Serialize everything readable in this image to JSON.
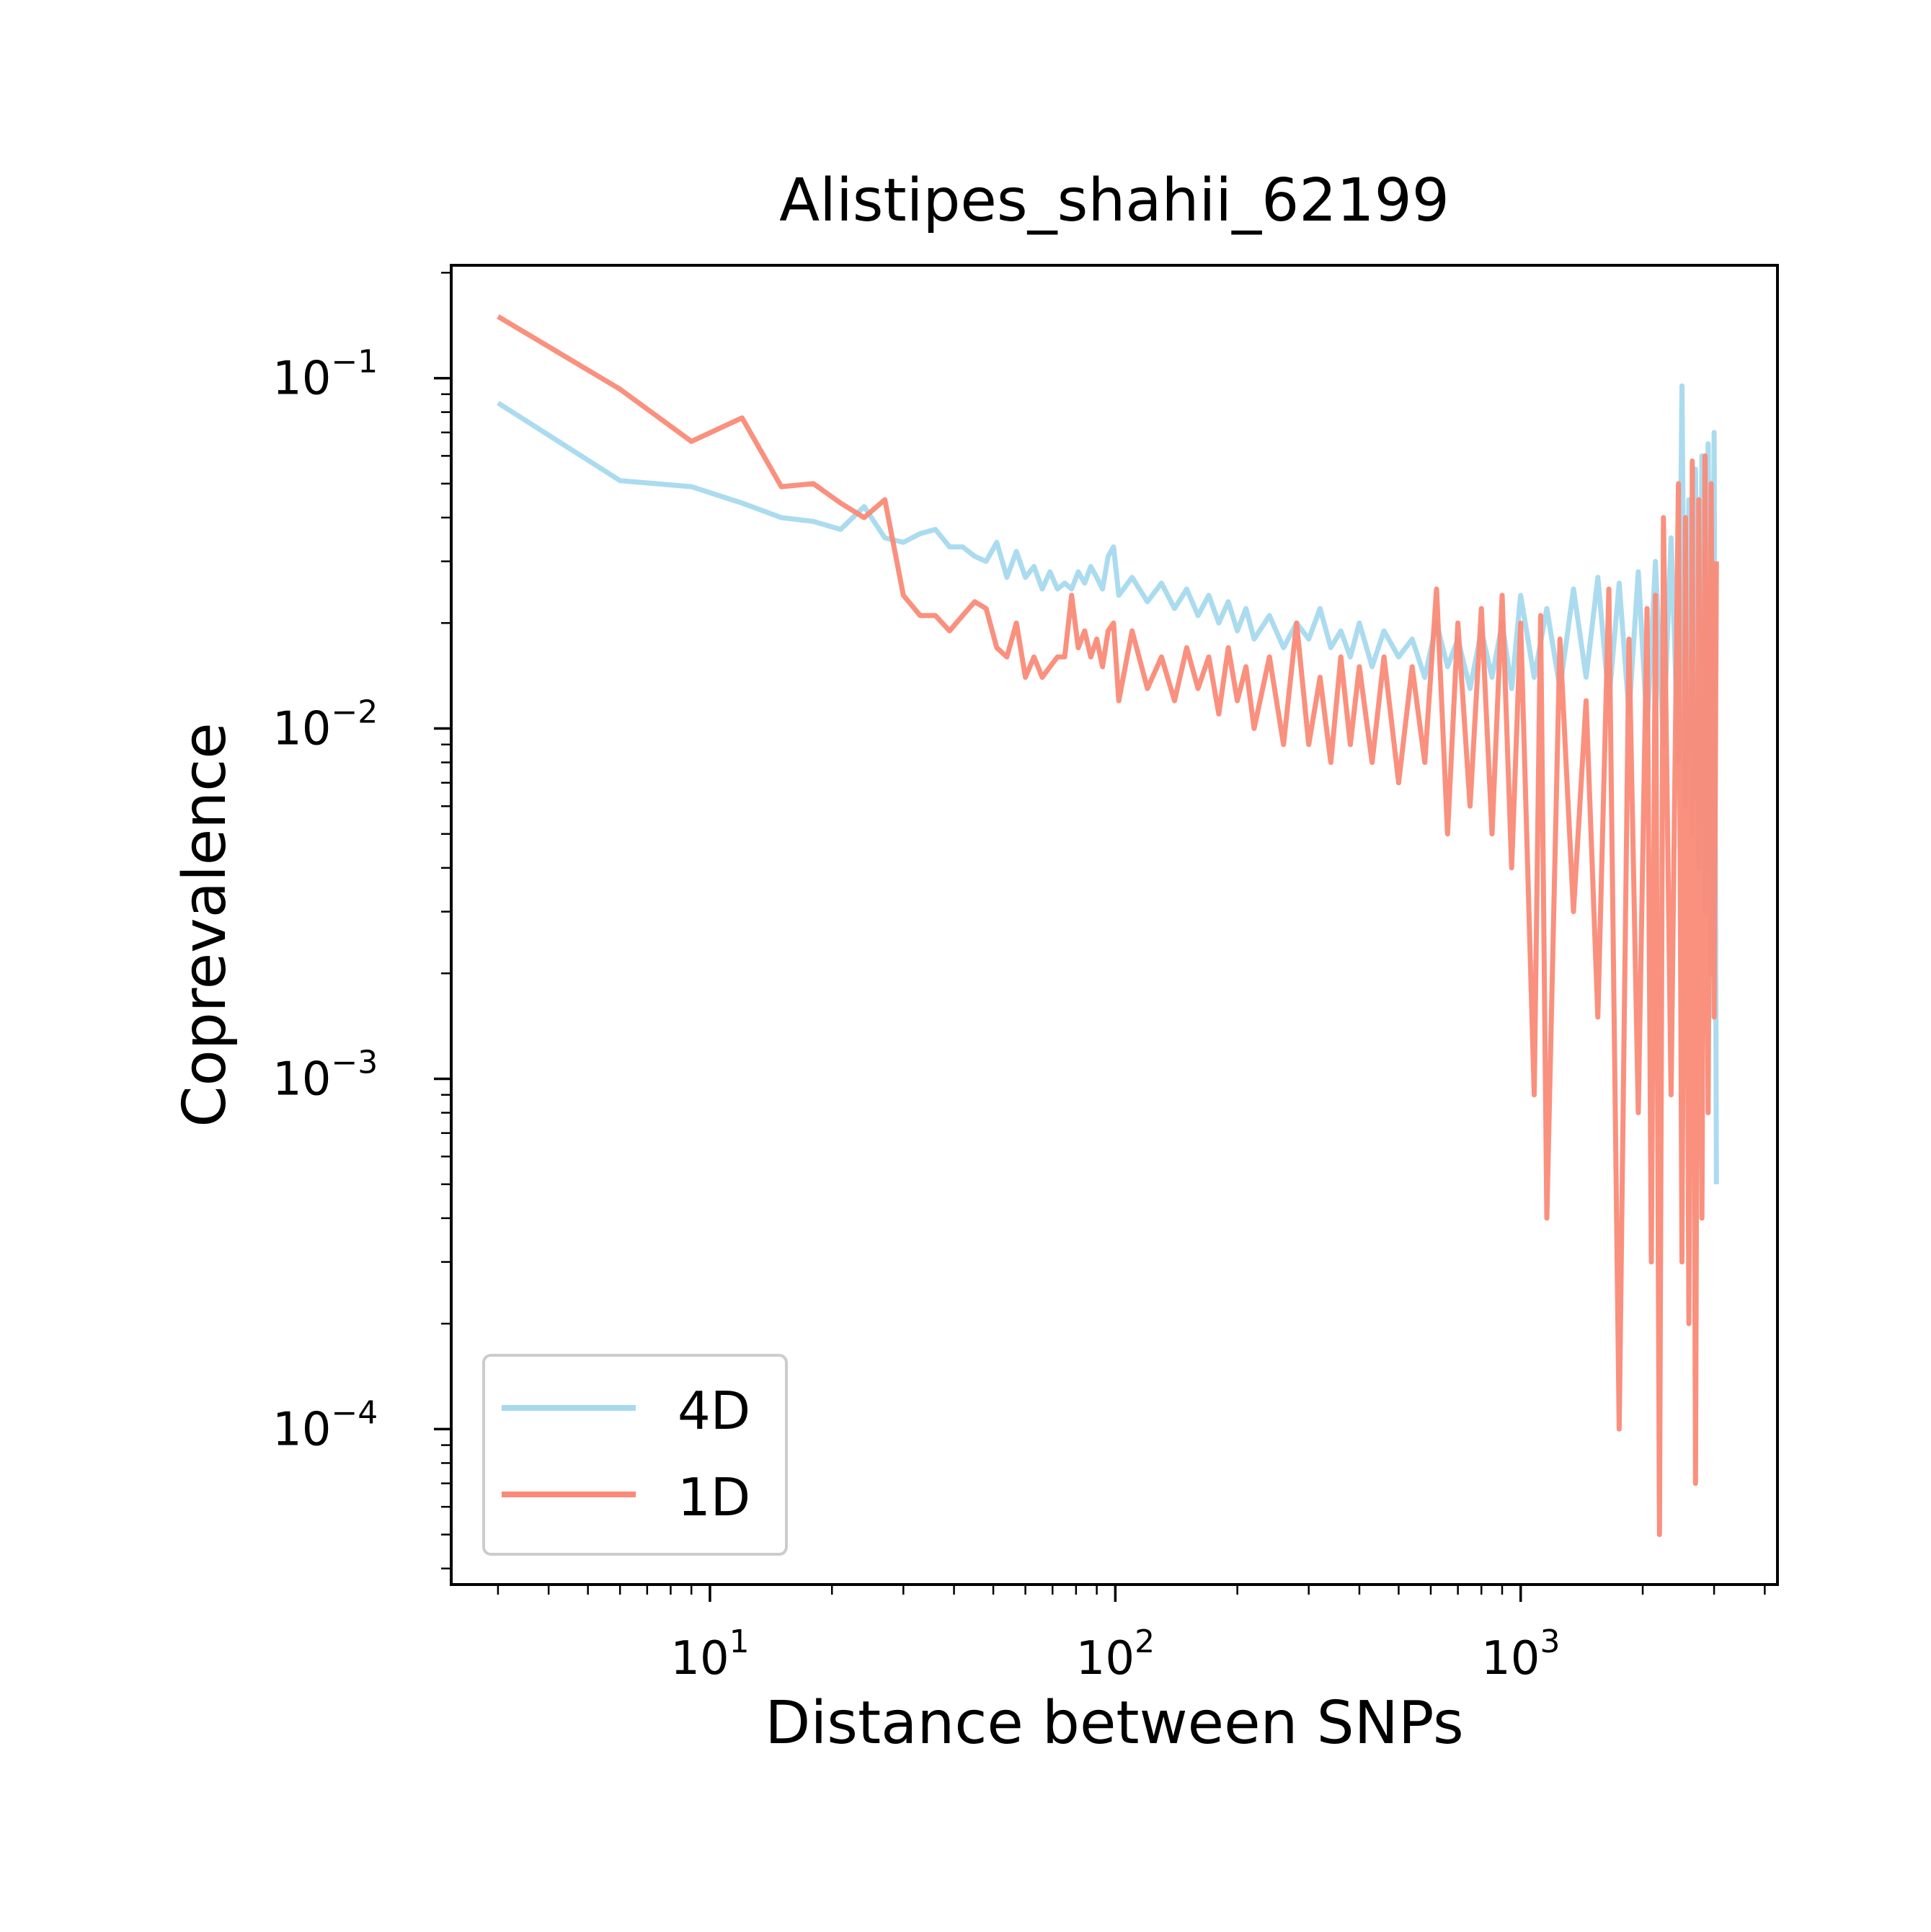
{
  "chart_data": {
    "type": "line",
    "title": "Alistipes_shahii_62199",
    "xlabel": "Distance between SNPs",
    "ylabel": "Coprevalence",
    "x_scale": "log",
    "y_scale": "log",
    "xlim": [
      2.3,
      4300
    ],
    "ylim": [
      3.6e-05,
      0.21
    ],
    "x_ticks": [
      {
        "value": 10,
        "base": "10",
        "exp": "1"
      },
      {
        "value": 100,
        "base": "10",
        "exp": "2"
      },
      {
        "value": 1000,
        "base": "10",
        "exp": "3"
      }
    ],
    "y_ticks": [
      {
        "value": 0.0001,
        "base": "10",
        "exp": "−4"
      },
      {
        "value": 0.001,
        "base": "10",
        "exp": "−3"
      },
      {
        "value": 0.01,
        "base": "10",
        "exp": "−2"
      },
      {
        "value": 0.1,
        "base": "10",
        "exp": "−1"
      }
    ],
    "grid": false,
    "legend_position": "lower-left",
    "series": [
      {
        "name": "4D",
        "color": "#a6d9ee",
        "x": [
          3,
          6,
          9,
          12,
          15,
          18,
          21,
          24,
          27,
          30,
          33,
          36,
          39,
          42,
          45,
          48,
          51,
          54,
          57,
          60,
          63,
          66,
          69,
          72,
          75,
          78,
          81,
          84,
          87,
          90,
          93,
          96,
          99,
          102,
          110,
          120,
          130,
          140,
          150,
          160,
          170,
          180,
          190,
          200,
          210,
          220,
          240,
          260,
          280,
          300,
          320,
          340,
          360,
          380,
          400,
          430,
          460,
          500,
          540,
          580,
          620,
          660,
          700,
          750,
          800,
          850,
          900,
          950,
          1000,
          1080,
          1160,
          1250,
          1350,
          1450,
          1550,
          1650,
          1750,
          1850,
          1950,
          2050,
          2150,
          2250,
          2350,
          2450,
          2500,
          2550,
          2600,
          2650,
          2700,
          2750,
          2800,
          2850,
          2900,
          2950,
          3000,
          3040
        ],
        "values": [
          0.085,
          0.051,
          0.049,
          0.044,
          0.04,
          0.039,
          0.037,
          0.043,
          0.035,
          0.034,
          0.036,
          0.037,
          0.033,
          0.033,
          0.031,
          0.03,
          0.034,
          0.027,
          0.032,
          0.027,
          0.029,
          0.025,
          0.028,
          0.025,
          0.026,
          0.025,
          0.028,
          0.026,
          0.029,
          0.027,
          0.025,
          0.031,
          0.033,
          0.024,
          0.027,
          0.023,
          0.026,
          0.022,
          0.025,
          0.021,
          0.024,
          0.02,
          0.023,
          0.019,
          0.022,
          0.018,
          0.021,
          0.017,
          0.02,
          0.018,
          0.022,
          0.017,
          0.019,
          0.016,
          0.02,
          0.015,
          0.019,
          0.016,
          0.018,
          0.014,
          0.02,
          0.015,
          0.018,
          0.013,
          0.019,
          0.014,
          0.02,
          0.013,
          0.024,
          0.014,
          0.022,
          0.013,
          0.025,
          0.014,
          0.027,
          0.012,
          0.026,
          0.011,
          0.028,
          0.01,
          0.03,
          0.009,
          0.035,
          0.008,
          0.095,
          0.006,
          0.045,
          0.005,
          0.055,
          0.004,
          0.06,
          0.003,
          0.065,
          0.002,
          0.07,
          0.0005
        ]
      },
      {
        "name": "1D",
        "color": "#fa8a77",
        "x": [
          3,
          6,
          9,
          12,
          15,
          18,
          21,
          24,
          27,
          30,
          33,
          36,
          39,
          42,
          45,
          48,
          51,
          54,
          57,
          60,
          63,
          66,
          69,
          72,
          75,
          78,
          81,
          84,
          87,
          90,
          93,
          96,
          99,
          102,
          110,
          120,
          130,
          140,
          150,
          160,
          170,
          180,
          190,
          200,
          210,
          220,
          240,
          260,
          280,
          300,
          320,
          340,
          360,
          380,
          400,
          430,
          460,
          500,
          540,
          580,
          620,
          660,
          700,
          750,
          800,
          850,
          900,
          950,
          1000,
          1080,
          1120,
          1160,
          1250,
          1350,
          1450,
          1550,
          1650,
          1750,
          1850,
          1950,
          2050,
          2100,
          2150,
          2200,
          2250,
          2350,
          2450,
          2500,
          2550,
          2600,
          2650,
          2700,
          2750,
          2800,
          2850,
          2900,
          2950,
          3000,
          3040
        ],
        "values": [
          0.15,
          0.093,
          0.066,
          0.077,
          0.049,
          0.05,
          0.044,
          0.04,
          0.045,
          0.024,
          0.021,
          0.021,
          0.019,
          0.021,
          0.023,
          0.022,
          0.017,
          0.016,
          0.02,
          0.014,
          0.016,
          0.014,
          0.015,
          0.016,
          0.016,
          0.024,
          0.017,
          0.019,
          0.016,
          0.018,
          0.015,
          0.019,
          0.02,
          0.012,
          0.019,
          0.013,
          0.016,
          0.012,
          0.017,
          0.013,
          0.016,
          0.011,
          0.017,
          0.012,
          0.015,
          0.01,
          0.016,
          0.009,
          0.02,
          0.009,
          0.014,
          0.008,
          0.016,
          0.009,
          0.015,
          0.008,
          0.016,
          0.007,
          0.015,
          0.008,
          0.025,
          0.005,
          0.02,
          0.006,
          0.022,
          0.005,
          0.024,
          0.004,
          0.02,
          0.0009,
          0.021,
          0.0004,
          0.018,
          0.003,
          0.012,
          0.0015,
          0.025,
          0.0001,
          0.018,
          0.0008,
          0.022,
          0.0003,
          0.024,
          5e-05,
          0.04,
          0.0009,
          0.05,
          0.0003,
          0.04,
          0.0002,
          0.058,
          7e-05,
          0.045,
          0.0004,
          0.06,
          0.0008,
          0.05,
          0.0015,
          0.03
        ]
      }
    ]
  }
}
